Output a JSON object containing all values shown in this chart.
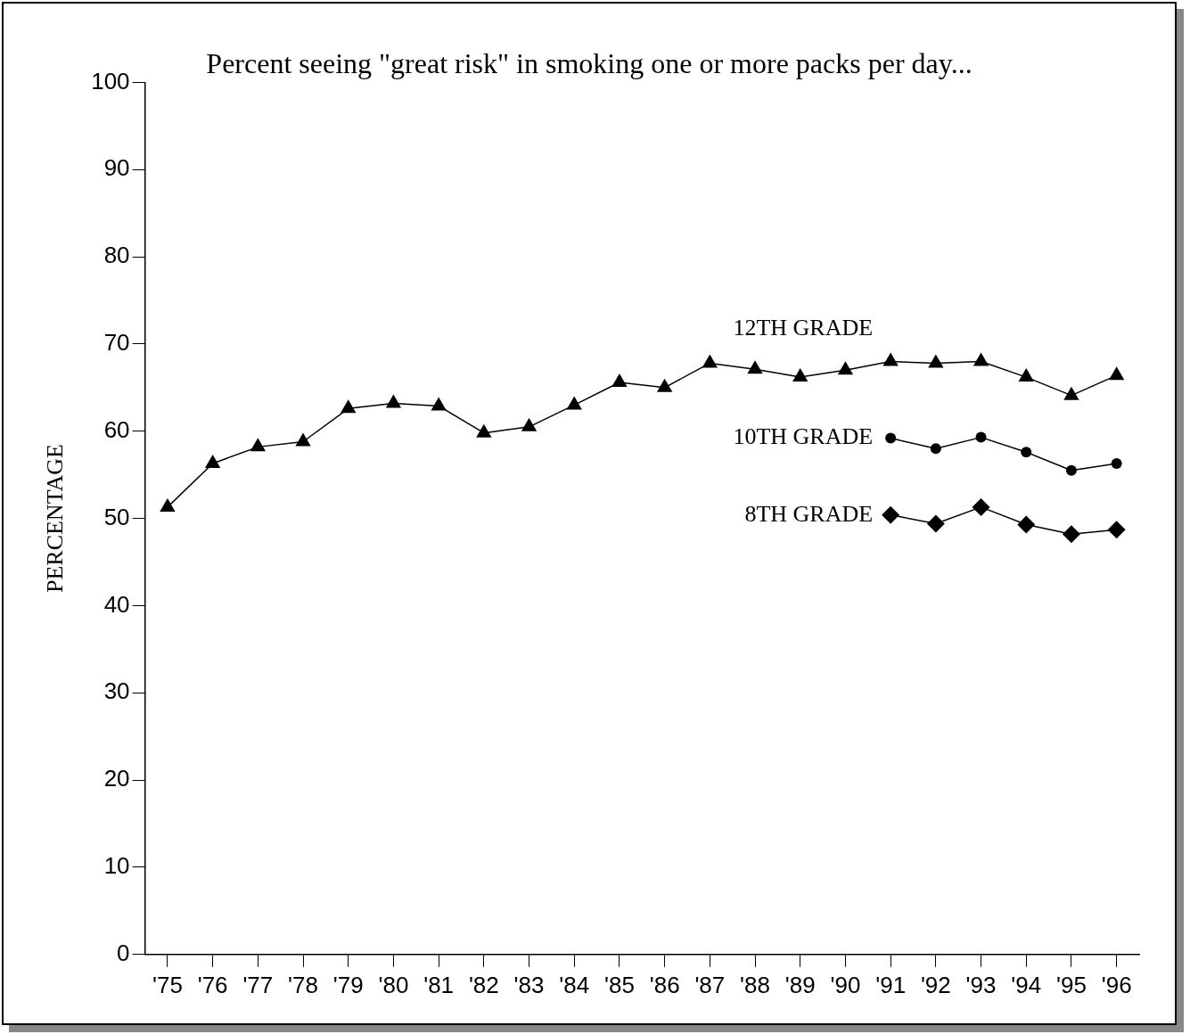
{
  "chart_data": {
    "type": "line",
    "title": "Percent seeing \"great risk\" in smoking one or more packs per day...",
    "ylabel": "PERCENTAGE",
    "categories": [
      "'75",
      "'76",
      "'77",
      "'78",
      "'79",
      "'80",
      "'81",
      "'82",
      "'83",
      "'84",
      "'85",
      "'86",
      "'87",
      "'88",
      "'89",
      "'90",
      "'91",
      "'92",
      "'93",
      "'94",
      "'95",
      "'96"
    ],
    "series": [
      {
        "name": "12TH GRADE",
        "color": "#000000",
        "marker": "triangle",
        "values": [
          51.3,
          56.3,
          58.2,
          58.8,
          62.6,
          63.2,
          62.9,
          59.8,
          60.5,
          63.0,
          65.6,
          65.0,
          67.8,
          67.1,
          66.2,
          67.0,
          68.0,
          67.8,
          68.0,
          66.2,
          64.1,
          66.4
        ]
      },
      {
        "name": "10TH GRADE",
        "color": "#000000",
        "marker": "circle",
        "values": [
          null,
          null,
          null,
          null,
          null,
          null,
          null,
          null,
          null,
          null,
          null,
          null,
          null,
          null,
          null,
          null,
          59.2,
          58.0,
          59.3,
          57.6,
          55.5,
          56.3
        ]
      },
      {
        "name": "8TH GRADE",
        "color": "#000000",
        "marker": "diamond",
        "values": [
          null,
          null,
          null,
          null,
          null,
          null,
          null,
          null,
          null,
          null,
          null,
          null,
          null,
          null,
          null,
          null,
          50.4,
          49.4,
          51.3,
          49.3,
          48.2,
          48.7
        ]
      }
    ],
    "ylim": [
      0,
      100
    ],
    "yticks": [
      0,
      10,
      20,
      30,
      40,
      50,
      60,
      70,
      80,
      90,
      100
    ],
    "grid": false,
    "legend": false,
    "line_style": "solid"
  }
}
